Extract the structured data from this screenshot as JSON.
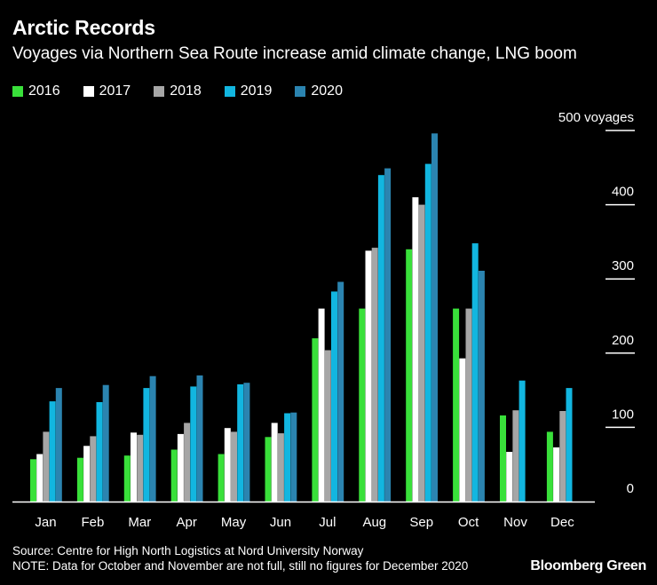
{
  "title": "Arctic Records",
  "subtitle": "Voyages via Northern Sea Route increase amid climate change, LNG boom",
  "source": "Source: Centre for High North Logistics at Nord University Norway",
  "note": "NOTE: Data for October and November are not full, still no figures for December 2020",
  "brand": "Bloomberg Green",
  "colors": {
    "2016": "#39e03a",
    "2017": "#ffffff",
    "2018": "#a6a6a6",
    "2019": "#12b6e0",
    "2020": "#2b84b0",
    "gridline": "#ffffff",
    "axis": "#ffffff"
  },
  "chart_data": {
    "type": "bar",
    "categories": [
      "Jan",
      "Feb",
      "Mar",
      "Apr",
      "May",
      "Jun",
      "Jul",
      "Aug",
      "Sep",
      "Oct",
      "Nov",
      "Dec"
    ],
    "series": [
      {
        "name": "2016",
        "values": [
          57,
          59,
          62,
          70,
          64,
          87,
          220,
          260,
          340,
          260,
          116,
          94
        ]
      },
      {
        "name": "2017",
        "values": [
          64,
          75,
          93,
          91,
          99,
          106,
          260,
          338,
          410,
          193,
          67,
          73
        ]
      },
      {
        "name": "2018",
        "values": [
          94,
          88,
          90,
          106,
          94,
          92,
          204,
          342,
          400,
          260,
          123,
          122
        ]
      },
      {
        "name": "2019",
        "values": [
          135,
          134,
          153,
          155,
          158,
          119,
          283,
          440,
          455,
          348,
          163,
          153
        ]
      },
      {
        "name": "2020",
        "values": [
          153,
          157,
          169,
          170,
          160,
          120,
          296,
          449,
          496,
          311,
          null,
          null
        ]
      }
    ],
    "y_ticks": [
      {
        "value": 0,
        "label": "0"
      },
      {
        "value": 100,
        "label": "100"
      },
      {
        "value": 200,
        "label": "200"
      },
      {
        "value": 300,
        "label": "300"
      },
      {
        "value": 400,
        "label": "400"
      },
      {
        "value": 500,
        "label": "500 voyages"
      }
    ],
    "ylim": [
      0,
      500
    ],
    "y_axis_side": "right",
    "grid": true,
    "legend_position": "top-left"
  }
}
